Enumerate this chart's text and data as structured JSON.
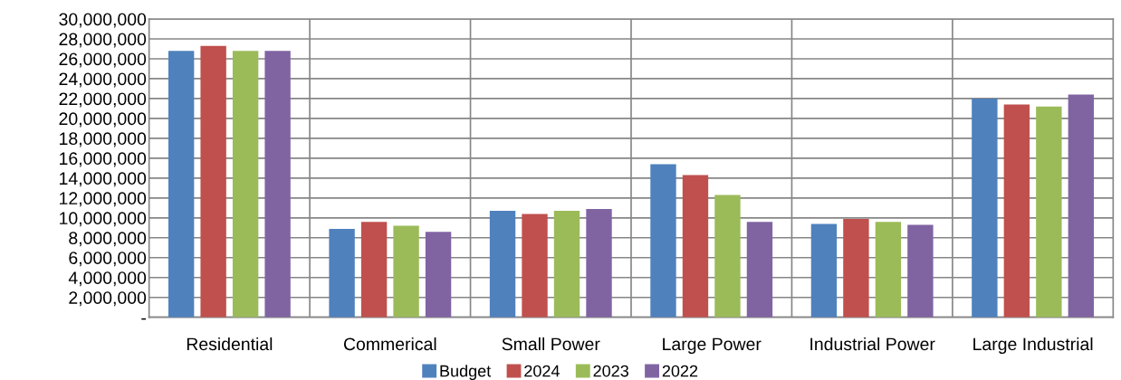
{
  "chart_data": {
    "type": "bar",
    "categories": [
      "Residential",
      "Commerical",
      "Small Power",
      "Large Power",
      "Industrial Power",
      "Large Industrial"
    ],
    "series": [
      {
        "name": "Budget",
        "color": "#4f81bd",
        "values": [
          26800000,
          8900000,
          10700000,
          15400000,
          9400000,
          22000000
        ]
      },
      {
        "name": "2024",
        "color": "#c0504d",
        "values": [
          27300000,
          9600000,
          10400000,
          14300000,
          9900000,
          21400000
        ]
      },
      {
        "name": "2023",
        "color": "#9bbb59",
        "values": [
          26800000,
          9200000,
          10700000,
          12300000,
          9600000,
          21200000
        ]
      },
      {
        "name": "2022",
        "color": "#8064a2",
        "values": [
          26800000,
          8600000,
          10900000,
          9600000,
          9300000,
          22400000
        ]
      }
    ],
    "ylim": [
      0,
      30000000
    ],
    "yticks": [
      {
        "value": 0,
        "label": "-"
      },
      {
        "value": 2000000,
        "label": "2,000,000"
      },
      {
        "value": 4000000,
        "label": "4,000,000"
      },
      {
        "value": 6000000,
        "label": "6,000,000"
      },
      {
        "value": 8000000,
        "label": "8,000,000"
      },
      {
        "value": 10000000,
        "label": "10,000,000"
      },
      {
        "value": 12000000,
        "label": "12,000,000"
      },
      {
        "value": 14000000,
        "label": "14,000,000"
      },
      {
        "value": 16000000,
        "label": "16,000,000"
      },
      {
        "value": 18000000,
        "label": "18,000,000"
      },
      {
        "value": 20000000,
        "label": "20,000,000"
      },
      {
        "value": 22000000,
        "label": "22,000,000"
      },
      {
        "value": 24000000,
        "label": "24,000,000"
      },
      {
        "value": 26000000,
        "label": "26,000,000"
      },
      {
        "value": 28000000,
        "label": "28,000,000"
      },
      {
        "value": 30000000,
        "label": "30,000,000"
      }
    ],
    "grid": true,
    "legend": "bottom"
  }
}
